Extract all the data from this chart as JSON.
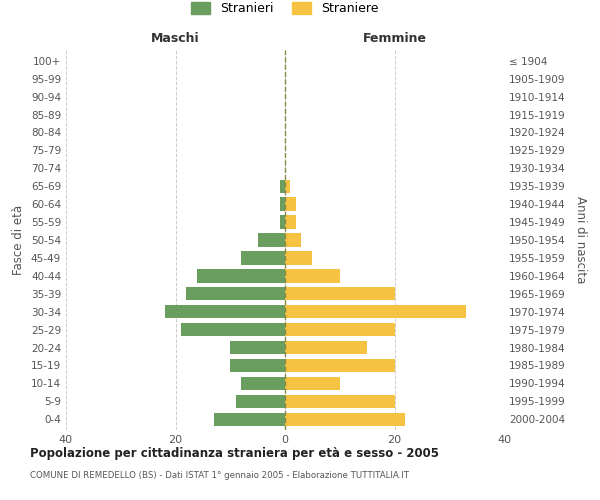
{
  "age_groups": [
    "0-4",
    "5-9",
    "10-14",
    "15-19",
    "20-24",
    "25-29",
    "30-34",
    "35-39",
    "40-44",
    "45-49",
    "50-54",
    "55-59",
    "60-64",
    "65-69",
    "70-74",
    "75-79",
    "80-84",
    "85-89",
    "90-94",
    "95-99",
    "100+"
  ],
  "birth_years": [
    "2000-2004",
    "1995-1999",
    "1990-1994",
    "1985-1989",
    "1980-1984",
    "1975-1979",
    "1970-1974",
    "1965-1969",
    "1960-1964",
    "1955-1959",
    "1950-1954",
    "1945-1949",
    "1940-1944",
    "1935-1939",
    "1930-1934",
    "1925-1929",
    "1920-1924",
    "1915-1919",
    "1910-1914",
    "1905-1909",
    "≤ 1904"
  ],
  "maschi": [
    13,
    9,
    8,
    10,
    10,
    19,
    22,
    18,
    16,
    8,
    5,
    1,
    1,
    1,
    0,
    0,
    0,
    0,
    0,
    0,
    0
  ],
  "femmine": [
    22,
    20,
    10,
    20,
    15,
    20,
    33,
    20,
    10,
    5,
    3,
    2,
    2,
    1,
    0,
    0,
    0,
    0,
    0,
    0,
    0
  ],
  "maschi_color": "#6a9e5e",
  "femmine_color": "#f5c242",
  "bg_color": "#ffffff",
  "grid_color": "#cccccc",
  "title": "Popolazione per cittadinanza straniera per età e sesso - 2005",
  "subtitle": "COMUNE DI REMEDELLO (BS) - Dati ISTAT 1° gennaio 2005 - Elaborazione TUTTITALIA.IT",
  "ylabel_left": "Fasce di età",
  "ylabel_right": "Anni di nascita",
  "xlabel_left": "Maschi",
  "xlabel_right": "Femmine",
  "legend_stranieri": "Stranieri",
  "legend_straniere": "Straniere",
  "xlim": 40
}
